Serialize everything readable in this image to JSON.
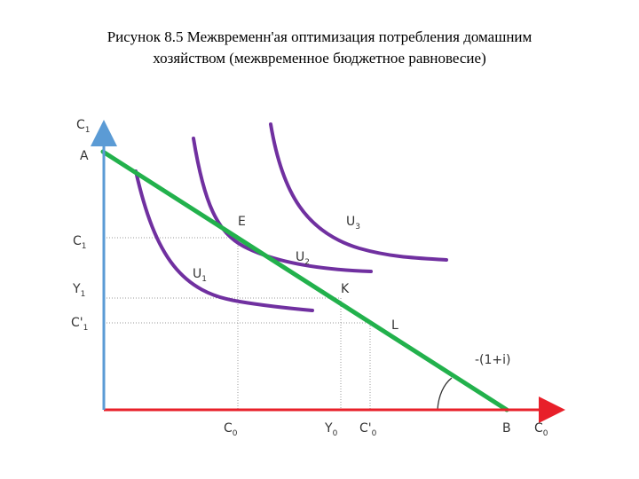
{
  "caption": {
    "line1": "Рисунок 8.5 Межвременн'ая оптимизация потребления домашним",
    "line2": "хозяйством (межвременное бюджетное равновесие)"
  },
  "colors": {
    "budget_line": "#22b14c",
    "indifference": "#7030a0",
    "x_axis": "#e8202a",
    "y_axis": "#5b9bd5",
    "guides": "#9a9a9a"
  },
  "axes": {
    "y_label": {
      "main": "C",
      "sub": "1"
    },
    "x_label": {
      "main": "C",
      "sub": "0"
    }
  },
  "y_ticks": [
    {
      "main": "A",
      "sub": ""
    },
    {
      "main": "C",
      "sub": "1"
    },
    {
      "main": "Y",
      "sub": "1"
    },
    {
      "main": "C'",
      "sub": "1"
    }
  ],
  "x_ticks": [
    {
      "main": "C",
      "sub": "0"
    },
    {
      "main": "Y",
      "sub": "0"
    },
    {
      "main": "C'",
      "sub": "0"
    },
    {
      "main": "B",
      "sub": ""
    }
  ],
  "points": [
    "E",
    "K",
    "L"
  ],
  "curves": [
    {
      "main": "U",
      "sub": "1"
    },
    {
      "main": "U",
      "sub": "2"
    },
    {
      "main": "U",
      "sub": "3"
    }
  ],
  "slope_label": "-(1+i)"
}
